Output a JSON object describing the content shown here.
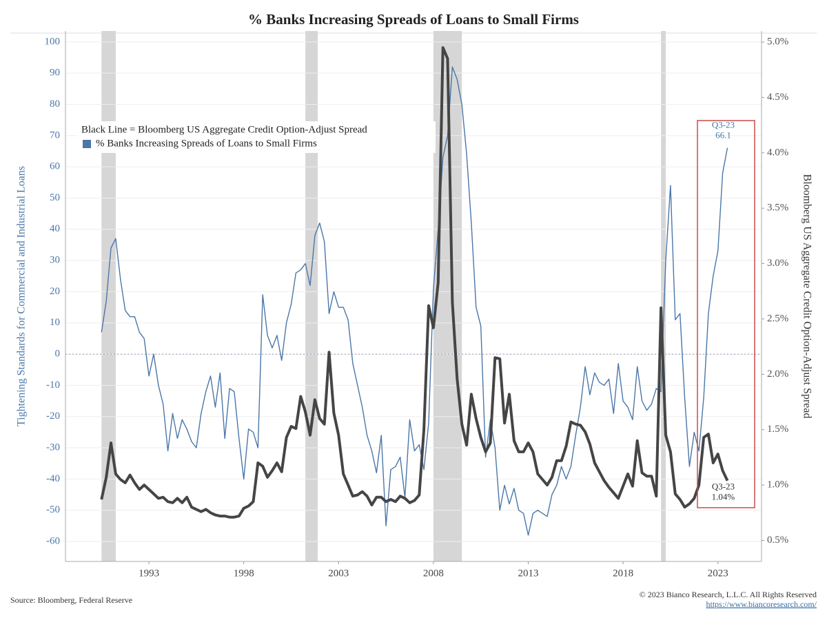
{
  "chart_data": {
    "type": "line",
    "title": "% Banks Increasing Spreads of Loans to Small Firms",
    "y_label": "Tightening Standards for Commercial and Industrial Loans",
    "y2_label": "Bloomberg US Aggregate Credit Option-Adjust Spread",
    "source": "Source: Bloomberg, Federal Reserve",
    "copyright": "© 2023 Bianco Research, L.L.C. All Rights Reserved",
    "url": "https://www.biancoresearch.com/",
    "x": [
      1990.5,
      1990.75,
      1991,
      1991.25,
      1991.5,
      1991.75,
      1992,
      1992.25,
      1992.5,
      1992.75,
      1993,
      1993.25,
      1993.5,
      1993.75,
      1994,
      1994.25,
      1994.5,
      1994.75,
      1995,
      1995.25,
      1995.5,
      1995.75,
      1996,
      1996.25,
      1996.5,
      1996.75,
      1997,
      1997.25,
      1997.5,
      1997.75,
      1998,
      1998.25,
      1998.5,
      1998.75,
      1999,
      1999.25,
      1999.5,
      1999.75,
      2000,
      2000.25,
      2000.5,
      2000.75,
      2001,
      2001.25,
      2001.5,
      2001.75,
      2002,
      2002.25,
      2002.5,
      2002.75,
      2003,
      2003.25,
      2003.5,
      2003.75,
      2004,
      2004.25,
      2004.5,
      2004.75,
      2005,
      2005.25,
      2005.5,
      2005.75,
      2006,
      2006.25,
      2006.5,
      2006.75,
      2007,
      2007.25,
      2007.5,
      2007.75,
      2008,
      2008.25,
      2008.5,
      2008.75,
      2009,
      2009.25,
      2009.5,
      2009.75,
      2010,
      2010.25,
      2010.5,
      2010.75,
      2011,
      2011.25,
      2011.5,
      2011.75,
      2012,
      2012.25,
      2012.5,
      2012.75,
      2013,
      2013.25,
      2013.5,
      2013.75,
      2014,
      2014.25,
      2014.5,
      2014.75,
      2015,
      2015.25,
      2015.5,
      2015.75,
      2016,
      2016.25,
      2016.5,
      2016.75,
      2017,
      2017.25,
      2017.5,
      2017.75,
      2018,
      2018.25,
      2018.5,
      2018.75,
      2019,
      2019.25,
      2019.5,
      2019.75,
      2020,
      2020.25,
      2020.5,
      2020.75,
      2021,
      2021.25,
      2021.5,
      2021.75,
      2022,
      2022.25,
      2022.5,
      2022.75,
      2023,
      2023.25,
      2023.5
    ],
    "series": [
      {
        "name": "% Banks Increasing Spreads of Loans to Small Firms",
        "color": "#4a76a8",
        "axis": "y",
        "line_width": 1.4,
        "values": [
          7,
          17,
          34,
          37,
          24,
          14,
          12,
          12,
          7,
          5,
          -7,
          0,
          -10,
          -16,
          -31,
          -19,
          -27,
          -21,
          -24,
          -28,
          -30,
          -19,
          -12,
          -7,
          -17,
          -6,
          -27,
          -11,
          -12,
          -27,
          -40,
          -24,
          -25,
          -30,
          19,
          6,
          2,
          6,
          -2,
          10,
          16,
          26,
          27,
          29,
          22,
          38,
          42,
          36,
          13,
          20,
          15,
          15,
          11,
          -3,
          -10,
          -17,
          -26,
          -31,
          -38,
          -26,
          -55,
          -37,
          -36,
          -33,
          -46,
          -21,
          -31,
          -29,
          -37,
          -22,
          21,
          40,
          63,
          70,
          92,
          88,
          80,
          64,
          42,
          15,
          9,
          -33,
          -21,
          -30,
          -50,
          -42,
          -48,
          -43,
          -50,
          -51,
          -58,
          -51,
          -50,
          -51,
          -52,
          -45,
          -42,
          -36,
          -40,
          -36,
          -26,
          -17,
          -4,
          -13,
          -6,
          -9,
          -10,
          -8,
          -19,
          -3,
          -15,
          -17,
          -21,
          -4,
          -15,
          -18,
          -16,
          -11,
          -12,
          30,
          54,
          11,
          13,
          -14,
          -36,
          -25,
          -31,
          -14,
          13,
          25,
          33,
          58,
          66.1
        ]
      },
      {
        "name": "Black Line = Bloomberg US Aggregate Credit Option-Adjust Spread",
        "color": "#454545",
        "axis": "y2",
        "line_width": 4,
        "values": [
          0.87,
          1.07,
          1.38,
          1.1,
          1.05,
          1.02,
          1.09,
          1.02,
          0.96,
          1.0,
          0.96,
          0.92,
          0.88,
          0.89,
          0.85,
          0.84,
          0.88,
          0.84,
          0.89,
          0.8,
          0.78,
          0.76,
          0.78,
          0.75,
          0.73,
          0.72,
          0.72,
          0.71,
          0.71,
          0.72,
          0.79,
          0.81,
          0.85,
          1.2,
          1.17,
          1.07,
          1.13,
          1.2,
          1.12,
          1.43,
          1.53,
          1.51,
          1.8,
          1.66,
          1.45,
          1.77,
          1.6,
          1.55,
          2.2,
          1.65,
          1.45,
          1.1,
          1.0,
          0.9,
          0.91,
          0.94,
          0.9,
          0.82,
          0.89,
          0.89,
          0.85,
          0.87,
          0.85,
          0.9,
          0.88,
          0.84,
          0.86,
          0.91,
          1.5,
          2.62,
          2.42,
          2.83,
          4.95,
          4.85,
          2.65,
          1.96,
          1.55,
          1.36,
          1.82,
          1.6,
          1.43,
          1.3,
          1.38,
          2.15,
          2.14,
          1.56,
          1.82,
          1.4,
          1.3,
          1.3,
          1.38,
          1.3,
          1.1,
          1.05,
          1.0,
          1.07,
          1.22,
          1.22,
          1.35,
          1.57,
          1.55,
          1.54,
          1.48,
          1.37,
          1.2,
          1.12,
          1.04,
          0.98,
          0.93,
          0.88,
          0.99,
          1.1,
          0.99,
          1.4,
          1.11,
          1.08,
          1.08,
          0.9,
          2.6,
          1.45,
          1.3,
          0.92,
          0.87,
          0.8,
          0.83,
          0.88,
          1.0,
          1.43,
          1.46,
          1.2,
          1.28,
          1.13,
          1.04
        ]
      }
    ],
    "annotations": [
      {
        "series": 0,
        "lines": [
          "Q3-23",
          "66.1"
        ]
      },
      {
        "series": 1,
        "lines": [
          "Q3-23",
          "1.04%"
        ]
      }
    ],
    "recessions": [
      [
        1990.5,
        1991.25
      ],
      [
        2001.25,
        2001.9
      ],
      [
        2008,
        2009.5
      ],
      [
        2020,
        2020.25
      ]
    ],
    "hline": 0,
    "xlim": [
      1988.6,
      2025.3
    ],
    "xticks": [
      1993,
      1998,
      2003,
      2008,
      2013,
      2018,
      2023
    ],
    "ylim": [
      -66.4,
      103.5
    ],
    "yticks": [
      -60,
      -50,
      -40,
      -30,
      -20,
      -10,
      0,
      10,
      20,
      30,
      40,
      50,
      60,
      70,
      80,
      90,
      100
    ],
    "y2lim": [
      0.31,
      5.1
    ],
    "y2ticks": [
      {
        "value": 0.5,
        "label": "0.5%"
      },
      {
        "value": 1,
        "label": "1.0%"
      },
      {
        "value": 1.5,
        "label": "1.5%"
      },
      {
        "value": 2,
        "label": "2.0%"
      },
      {
        "value": 2.5,
        "label": "2.5%"
      },
      {
        "value": 3,
        "label": "3.0%"
      },
      {
        "value": 3.5,
        "label": "3.5%"
      },
      {
        "value": 4,
        "label": "4.0%"
      },
      {
        "value": 4.5,
        "label": "4.5%"
      },
      {
        "value": 5,
        "label": "5.0%"
      }
    ],
    "grid": true,
    "legend": "upper left"
  }
}
